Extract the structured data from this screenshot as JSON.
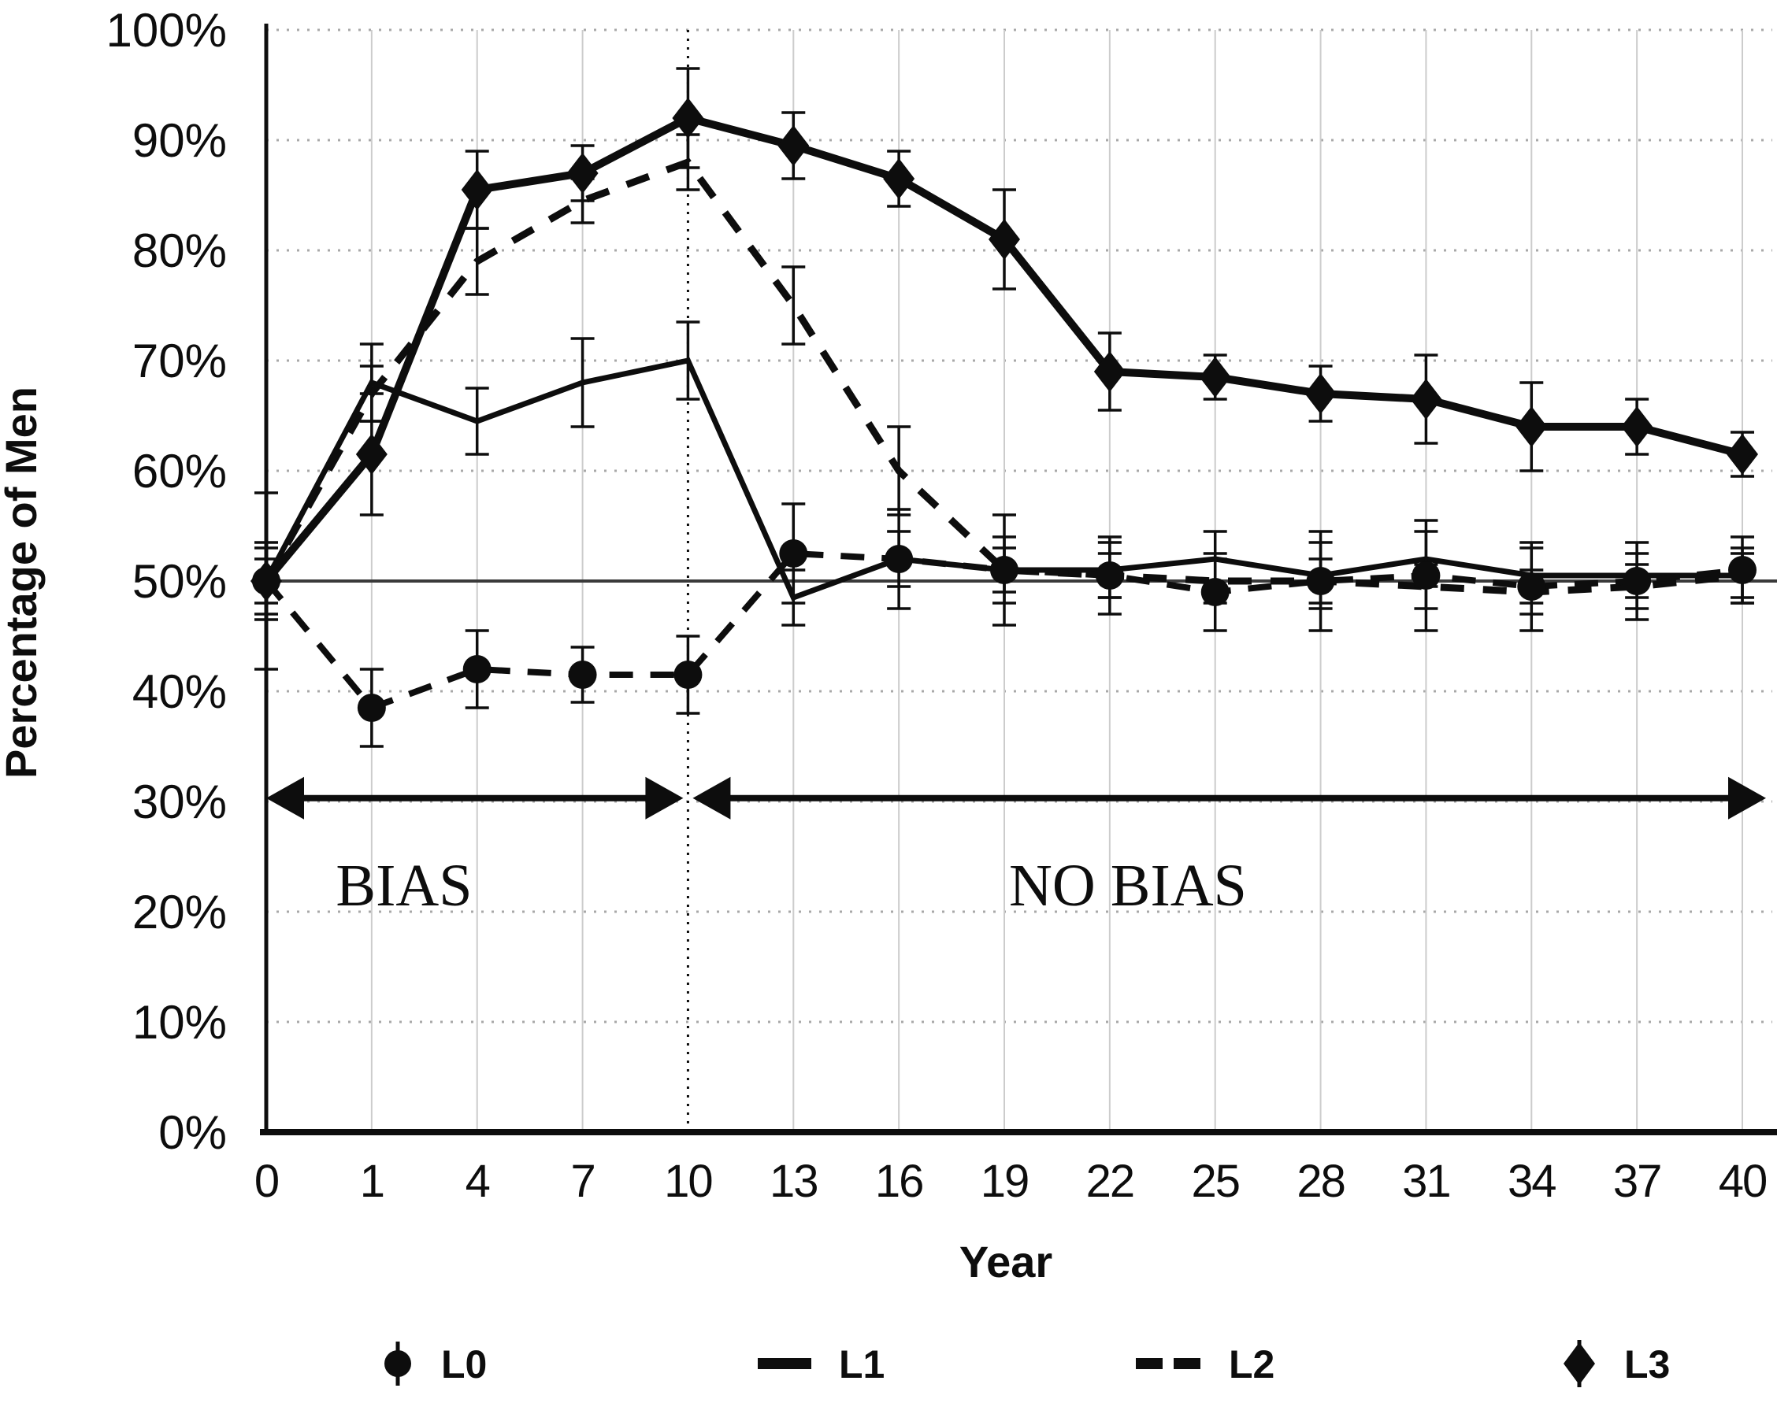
{
  "figure_background": "#ffffff",
  "ink_color": "#0d0d0d",
  "grid_color_h": "#a8a8a8",
  "grid_color_v": "#cccccc",
  "baseline_color": "#3a3a3a",
  "chart_data": {
    "type": "line",
    "title": "",
    "xlabel": "Year",
    "ylabel": "Percentage of Men",
    "x": [
      0,
      1,
      4,
      7,
      10,
      13,
      16,
      19,
      22,
      25,
      28,
      31,
      34,
      37,
      40
    ],
    "ylim": [
      0,
      100
    ],
    "ytick_step": 10,
    "ytick_suffix": "%",
    "grid": true,
    "baseline_value": 50,
    "bias_boundary_year": 10,
    "legend_position": "bottom",
    "series": [
      {
        "name": "L0",
        "line_style": "dashed",
        "marker": "circle",
        "values": [
          50,
          38.5,
          42,
          41.5,
          41.5,
          52.5,
          52,
          51,
          50.5,
          49,
          50,
          50.5,
          49.5,
          50,
          51
        ],
        "errors": [
          2,
          3.5,
          3.5,
          2.5,
          3.5,
          4.5,
          4.5,
          5,
          3.5,
          3.5,
          4.5,
          5,
          4,
          3.5,
          3
        ]
      },
      {
        "name": "L1",
        "line_style": "solid",
        "marker": "none",
        "values": [
          50,
          68,
          64.5,
          68,
          70,
          48.5,
          52,
          51,
          51,
          52,
          50.5,
          52,
          50.5,
          50.5,
          50.5
        ],
        "errors": [
          8,
          3.5,
          3,
          4,
          3.5,
          2.5,
          2.5,
          3,
          2.5,
          2.5,
          3,
          2.5,
          2.5,
          2,
          2.5
        ]
      },
      {
        "name": "L2",
        "line_style": "dashed",
        "marker": "none",
        "values": [
          50,
          67,
          79,
          84.5,
          88,
          75,
          60,
          51,
          50.5,
          50,
          50,
          49.5,
          49,
          49.5,
          50.5
        ],
        "errors": [
          3,
          2.5,
          3,
          2,
          2.5,
          3.5,
          4,
          2,
          2,
          2,
          2,
          2,
          2,
          2,
          2
        ]
      },
      {
        "name": "L3",
        "line_style": "solid-thick",
        "marker": "diamond",
        "values": [
          50,
          61.5,
          85.5,
          87,
          92,
          89.5,
          86.5,
          81,
          69,
          68.5,
          67,
          66.5,
          64,
          64,
          61.5
        ],
        "errors": [
          3.5,
          5.5,
          3.5,
          2.5,
          4.5,
          3,
          2.5,
          4.5,
          3.5,
          2,
          2.5,
          4,
          4,
          2.5,
          2
        ]
      }
    ],
    "annotations": [
      {
        "text": "BIAS",
        "span_years": [
          0,
          10
        ]
      },
      {
        "text": "NO BIAS",
        "span_years": [
          10,
          40
        ]
      }
    ]
  }
}
